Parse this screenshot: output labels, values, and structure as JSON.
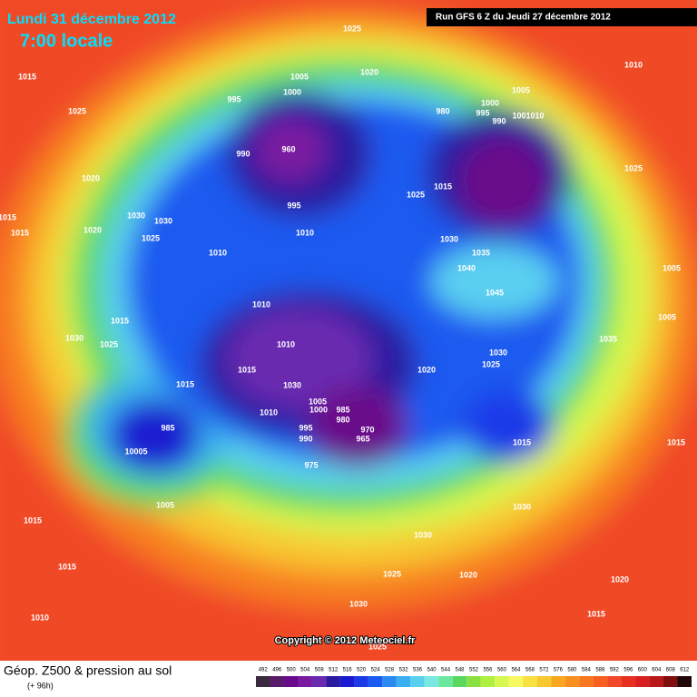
{
  "header": {
    "date": "Lundi 31 décembre 2012",
    "time": "7:00 locale",
    "run": "Run GFS 6 Z du Jeudi 27 décembre 2012"
  },
  "map": {
    "copyright": "Copyright © 2012 Meteociel.fr",
    "isobar_labels": [
      "1025",
      "1010",
      "1015",
      "1025",
      "1005",
      "1000",
      "1020",
      "995",
      "1005",
      "1000",
      "995",
      "980",
      "990",
      "1001010",
      "960",
      "990",
      "1025",
      "1020",
      "995",
      "1025",
      "1015",
      "1015",
      "1030",
      "1030",
      "1015",
      "1020",
      "1010",
      "1025",
      "1030",
      "1035",
      "1010",
      "1040",
      "1005",
      "1045",
      "1010",
      "1005",
      "1015",
      "1030",
      "1025",
      "1010",
      "1035",
      "1030",
      "1025",
      "1015",
      "1020",
      "1030",
      "1015",
      "1005",
      "985",
      "1000",
      "1010",
      "970",
      "980",
      "995",
      "985",
      "965",
      "990",
      "1015",
      "1015",
      "10005",
      "975",
      "1030",
      "1005",
      "1015",
      "1030",
      "1015",
      "1025",
      "1020",
      "1020",
      "1030",
      "1010",
      "1015",
      "1025"
    ]
  },
  "footer": {
    "title": "Géop. Z500 & pression au sol",
    "lead": "(+ 96h)",
    "scale": [
      492,
      496,
      500,
      504,
      508,
      512,
      516,
      520,
      524,
      528,
      532,
      536,
      540,
      544,
      548,
      552,
      556,
      560,
      564,
      568,
      572,
      576,
      580,
      584,
      588,
      592,
      596,
      600,
      604,
      608,
      612
    ],
    "scale_colors": [
      "#3a2a3e",
      "#5a1a6a",
      "#6a0a8a",
      "#7a1aa0",
      "#6a2ab0",
      "#2a1aa0",
      "#1a1ad0",
      "#1a3ae8",
      "#1a5af0",
      "#2a8af0",
      "#3ab0f0",
      "#5ad0f0",
      "#7ae8e0",
      "#6ae8a0",
      "#5ad860",
      "#8ae040",
      "#b0f040",
      "#d8f850",
      "#f8f860",
      "#f8e040",
      "#f8c830",
      "#f8a820",
      "#f89020",
      "#f87820",
      "#f86020",
      "#f04828",
      "#e83020",
      "#d82020",
      "#b81818",
      "#801010",
      "#200808"
    ]
  }
}
